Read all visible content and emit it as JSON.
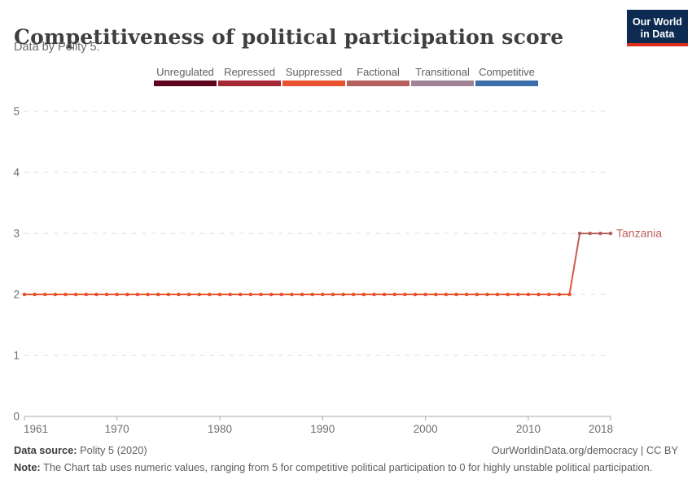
{
  "header": {
    "title": "Competitiveness of political participation score",
    "subtitle": "Data by Polity 5."
  },
  "logo": {
    "line1": "Our World",
    "line2": "in Data",
    "bg_color": "#0d2a51",
    "bar_color": "#dc2e1c"
  },
  "legend": {
    "items": [
      {
        "label": "Unregulated",
        "color": "#60051e",
        "value": 0
      },
      {
        "label": "Repressed",
        "color": "#a52837",
        "value": 1
      },
      {
        "label": "Suppressed",
        "color": "#e8522f",
        "value": 2
      },
      {
        "label": "Factional",
        "color": "#b5605d",
        "value": 3
      },
      {
        "label": "Transitional",
        "color": "#a08496",
        "value": 4
      },
      {
        "label": "Competitive",
        "color": "#3c6eaa",
        "value": 5
      }
    ]
  },
  "chart_data": {
    "type": "line",
    "title": "Competitiveness of political participation score",
    "xlabel": "",
    "ylabel": "",
    "xlim": [
      1961,
      2018
    ],
    "ylim": [
      0,
      5
    ],
    "x_ticks": [
      1961,
      1970,
      1980,
      1990,
      2000,
      2010,
      2018
    ],
    "y_ticks": [
      0,
      1,
      2,
      3,
      4,
      5
    ],
    "grid": "horizontal-dashed",
    "legend_position": "top",
    "value_colors": {
      "0": "#60051e",
      "1": "#a52837",
      "2": "#e8522f",
      "3": "#b5605d",
      "4": "#a08496",
      "5": "#3c6eaa"
    },
    "series": [
      {
        "name": "Tanzania",
        "label_color": "#bf5f5c",
        "points": [
          [
            1961,
            2
          ],
          [
            1962,
            2
          ],
          [
            1963,
            2
          ],
          [
            1964,
            2
          ],
          [
            1965,
            2
          ],
          [
            1966,
            2
          ],
          [
            1967,
            2
          ],
          [
            1968,
            2
          ],
          [
            1969,
            2
          ],
          [
            1970,
            2
          ],
          [
            1971,
            2
          ],
          [
            1972,
            2
          ],
          [
            1973,
            2
          ],
          [
            1974,
            2
          ],
          [
            1975,
            2
          ],
          [
            1976,
            2
          ],
          [
            1977,
            2
          ],
          [
            1978,
            2
          ],
          [
            1979,
            2
          ],
          [
            1980,
            2
          ],
          [
            1981,
            2
          ],
          [
            1982,
            2
          ],
          [
            1983,
            2
          ],
          [
            1984,
            2
          ],
          [
            1985,
            2
          ],
          [
            1986,
            2
          ],
          [
            1987,
            2
          ],
          [
            1988,
            2
          ],
          [
            1989,
            2
          ],
          [
            1990,
            2
          ],
          [
            1991,
            2
          ],
          [
            1992,
            2
          ],
          [
            1993,
            2
          ],
          [
            1994,
            2
          ],
          [
            1995,
            2
          ],
          [
            1996,
            2
          ],
          [
            1997,
            2
          ],
          [
            1998,
            2
          ],
          [
            1999,
            2
          ],
          [
            2000,
            2
          ],
          [
            2001,
            2
          ],
          [
            2002,
            2
          ],
          [
            2003,
            2
          ],
          [
            2004,
            2
          ],
          [
            2005,
            2
          ],
          [
            2006,
            2
          ],
          [
            2007,
            2
          ],
          [
            2008,
            2
          ],
          [
            2009,
            2
          ],
          [
            2010,
            2
          ],
          [
            2011,
            2
          ],
          [
            2012,
            2
          ],
          [
            2013,
            2
          ],
          [
            2014,
            2
          ],
          [
            2015,
            3
          ],
          [
            2016,
            3
          ],
          [
            2017,
            3
          ],
          [
            2018,
            3
          ]
        ]
      }
    ],
    "axis_color": "#a8a8a8",
    "grid_color": "#d9d9d9",
    "tick_label_color": "#6e6e6e"
  },
  "footer": {
    "source_label": "Data source:",
    "source_value": " Polity 5 (2020)",
    "link": "OurWorldinData.org/democracy | CC BY",
    "note_label": "Note:",
    "note_text": " The Chart tab uses numeric values, ranging from 5 for competitive political participation to 0 for highly unstable political participation."
  }
}
